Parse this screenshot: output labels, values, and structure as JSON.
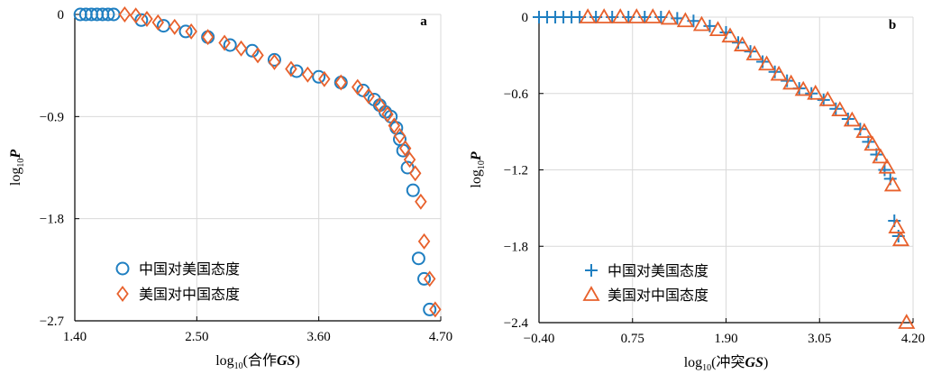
{
  "colors": {
    "circle": "#1f7fc1",
    "diamond": "#e8612c",
    "plus": "#1f7fc1",
    "triangle": "#e8612c",
    "axis": "#000000",
    "grid": "#d9d9d9"
  },
  "chart_data": [
    {
      "type": "scatter",
      "panel_label": "a",
      "ylabel_main": "log",
      "ylabel_sub": "10",
      "ylabel_var": "P",
      "xlabel_main": "log",
      "xlabel_sub": "10",
      "xlabel_text": "(合作",
      "xlabel_var": "GS",
      "xlabel_close": ")",
      "xlim": [
        1.4,
        4.7
      ],
      "ylim": [
        -2.7,
        0
      ],
      "xticks": [
        "1.40",
        "2.50",
        "3.60",
        "4.70"
      ],
      "xtick_values": [
        1.4,
        2.5,
        3.6,
        4.7
      ],
      "yticks": [
        "0",
        "−0.9",
        "−1.8",
        "−2.7"
      ],
      "ytick_values": [
        0,
        -0.9,
        -1.8,
        -2.7
      ],
      "grid": true,
      "legend_position": "bottom-left",
      "series": [
        {
          "name": "中国对美国态度",
          "marker": "circle",
          "x": [
            1.45,
            1.5,
            1.55,
            1.6,
            1.65,
            1.7,
            1.75,
            2.0,
            2.2,
            2.4,
            2.6,
            2.8,
            3.0,
            3.2,
            3.4,
            3.6,
            3.8,
            4.0,
            4.1,
            4.15,
            4.2,
            4.25,
            4.3,
            4.33,
            4.36,
            4.4,
            4.45,
            4.5,
            4.55,
            4.6
          ],
          "y": [
            0,
            0,
            0,
            0,
            0,
            0,
            0,
            -0.05,
            -0.1,
            -0.15,
            -0.2,
            -0.27,
            -0.32,
            -0.4,
            -0.5,
            -0.55,
            -0.6,
            -0.67,
            -0.75,
            -0.8,
            -0.86,
            -0.9,
            -1.0,
            -1.1,
            -1.2,
            -1.35,
            -1.55,
            -2.15,
            -2.33,
            -2.6
          ]
        },
        {
          "name": "美国对中国态度",
          "marker": "diamond",
          "x": [
            1.85,
            1.95,
            2.05,
            2.15,
            2.3,
            2.45,
            2.6,
            2.75,
            2.9,
            3.05,
            3.2,
            3.35,
            3.5,
            3.65,
            3.8,
            3.95,
            4.05,
            4.15,
            4.22,
            4.28,
            4.33,
            4.38,
            4.42,
            4.47,
            4.52,
            4.55,
            4.6,
            4.65
          ],
          "y": [
            0,
            -0.01,
            -0.04,
            -0.07,
            -0.11,
            -0.15,
            -0.2,
            -0.25,
            -0.3,
            -0.36,
            -0.42,
            -0.48,
            -0.53,
            -0.57,
            -0.6,
            -0.64,
            -0.72,
            -0.8,
            -0.88,
            -0.98,
            -1.07,
            -1.18,
            -1.28,
            -1.4,
            -1.65,
            -2.0,
            -2.33,
            -2.6
          ]
        }
      ]
    },
    {
      "type": "scatter",
      "panel_label": "b",
      "ylabel_main": "log",
      "ylabel_sub": "10",
      "ylabel_var": "P",
      "xlabel_main": "log",
      "xlabel_sub": "10",
      "xlabel_text": "(冲突",
      "xlabel_var": "GS",
      "xlabel_close": ")",
      "xlim": [
        -0.4,
        4.2
      ],
      "ylim": [
        -2.4,
        0
      ],
      "xticks": [
        "−0.40",
        "0.75",
        "1.90",
        "3.05",
        "4.20"
      ],
      "xtick_values": [
        -0.4,
        0.75,
        1.9,
        3.05,
        4.2
      ],
      "yticks": [
        "0",
        "−0.6",
        "−1.2",
        "−1.8",
        "−2.4"
      ],
      "ytick_values": [
        0,
        -0.6,
        -1.2,
        -1.8,
        -2.4
      ],
      "grid": true,
      "legend_position": "bottom-left",
      "series": [
        {
          "name": "中国对美国态度",
          "marker": "plus",
          "x": [
            -0.4,
            -0.3,
            -0.2,
            -0.1,
            0.0,
            0.1,
            0.3,
            0.5,
            0.7,
            0.9,
            1.1,
            1.3,
            1.5,
            1.7,
            1.9,
            2.05,
            2.2,
            2.35,
            2.5,
            2.65,
            2.8,
            2.95,
            3.1,
            3.25,
            3.4,
            3.55,
            3.65,
            3.75,
            3.85,
            3.92,
            3.97,
            4.02
          ],
          "y": [
            0,
            0,
            0,
            0,
            0,
            0,
            0,
            0,
            0,
            0,
            0,
            -0.01,
            -0.03,
            -0.07,
            -0.12,
            -0.2,
            -0.27,
            -0.35,
            -0.43,
            -0.5,
            -0.56,
            -0.6,
            -0.65,
            -0.72,
            -0.8,
            -0.88,
            -0.98,
            -1.08,
            -1.2,
            -1.27,
            -1.6,
            -1.72
          ]
        },
        {
          "name": "美国对中国态度",
          "marker": "triangle",
          "x": [
            0.2,
            0.4,
            0.6,
            0.8,
            1.0,
            1.2,
            1.4,
            1.6,
            1.8,
            1.95,
            2.1,
            2.25,
            2.4,
            2.55,
            2.7,
            2.85,
            3.0,
            3.15,
            3.3,
            3.45,
            3.6,
            3.7,
            3.8,
            3.88,
            3.95,
            4.0,
            4.05,
            4.12
          ],
          "y": [
            0,
            0,
            0,
            0,
            0,
            -0.01,
            -0.03,
            -0.06,
            -0.1,
            -0.15,
            -0.22,
            -0.29,
            -0.37,
            -0.45,
            -0.52,
            -0.57,
            -0.6,
            -0.65,
            -0.73,
            -0.81,
            -0.9,
            -1.0,
            -1.1,
            -1.18,
            -1.32,
            -1.65,
            -1.75,
            -2.4
          ]
        }
      ]
    }
  ]
}
